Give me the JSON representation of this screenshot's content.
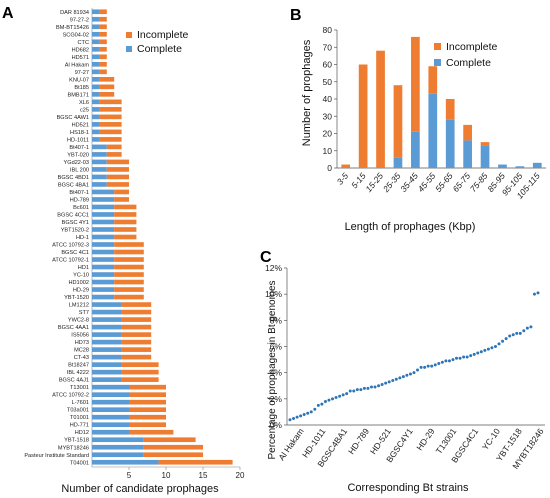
{
  "panels": {
    "a": "A",
    "b": "B",
    "c": "C"
  },
  "chart_data": [
    {
      "type": "bar",
      "orientation": "horizontal",
      "xlabel": "Number of candidate prophages",
      "xlim": [
        0,
        20
      ],
      "xticks": [
        5,
        10,
        15,
        20
      ],
      "legend": {
        "placement": "top-right",
        "entries": [
          "Incomplete",
          "Complete"
        ]
      },
      "colors": {
        "Incomplete": "#ee7d31",
        "Complete": "#5b9bd5"
      },
      "categories": [
        "DAR 81934",
        "97-27-2",
        "BM-BT15426",
        "SCG04-02",
        "CTC",
        "HD682",
        "HD571",
        "Al Hakam",
        "97-27",
        "KNU-07",
        "Bt185",
        "BMB171",
        "XL6",
        "c25",
        "BGSC 4AW1",
        "HD521",
        "HS18-1",
        "HD-1011",
        "Bt407-1",
        "YBT-020",
        "YGd22-03",
        "IBL 200",
        "BGSC 4BD1",
        "BGSC 4BA1",
        "Bt407-1",
        "HD-789",
        "Bc601",
        "BGSC 4CC1",
        "BGSC 4Y1",
        "YBT1520-2",
        "HD-1",
        "ATCC 10792-3",
        "BGSC 4C1",
        "ATCC 10792-1",
        "HD1",
        "YC-10",
        "HD1002",
        "HD-29",
        "YBT-1520",
        "LM1212",
        "ST7",
        "YWC2-8",
        "BGSC 4AA1",
        "IS5056",
        "HD73",
        "MC28",
        "CT-43",
        "Bt18247",
        "IBL 4222",
        "BGSC 4AJ1",
        "T13001",
        "ATCC 10792-2",
        "L-7601",
        "T03a001",
        "T01001",
        "HD-771",
        "HD12",
        "YBT-1518",
        "MYBT18246",
        "Pasteur Institute Standard",
        "T04001"
      ],
      "series": [
        {
          "name": "Incomplete",
          "values": [
            1,
            1,
            1,
            1,
            1,
            1,
            1,
            1,
            1,
            2,
            2,
            2,
            3,
            3,
            3,
            3,
            3,
            3,
            2,
            2,
            3,
            3,
            3,
            3,
            2,
            2,
            3,
            3,
            3,
            3,
            3,
            4,
            4,
            4,
            4,
            4,
            4,
            4,
            4,
            4,
            4,
            4,
            4,
            4,
            4,
            4,
            4,
            5,
            5,
            5,
            5,
            5,
            5,
            5,
            5,
            5,
            6,
            7,
            8,
            8,
            10
          ]
        },
        {
          "name": "Complete",
          "values": [
            1,
            1,
            1,
            1,
            1,
            1,
            1,
            1,
            1,
            1,
            1,
            1,
            1,
            1,
            1,
            1,
            1,
            1,
            2,
            2,
            2,
            2,
            2,
            2,
            3,
            3,
            3,
            3,
            3,
            3,
            3,
            3,
            3,
            3,
            3,
            3,
            3,
            3,
            3,
            4,
            4,
            4,
            4,
            4,
            4,
            4,
            4,
            4,
            4,
            4,
            5,
            5,
            5,
            5,
            5,
            5,
            5,
            7,
            7,
            7,
            9
          ]
        }
      ]
    },
    {
      "type": "bar",
      "stacked": true,
      "xlabel": "Length of prophages (Kbp)",
      "ylabel": "Number of prophages",
      "ylim": [
        0,
        80
      ],
      "yticks": [
        0,
        10,
        20,
        30,
        40,
        50,
        60,
        70,
        80
      ],
      "legend": {
        "placement": "top-right",
        "entries": [
          "Incomplete",
          "Complete"
        ]
      },
      "categories": [
        "3-5",
        "5-15",
        "15-25",
        "25-35",
        "35-45",
        "45-55",
        "55-65",
        "65-75",
        "75-85",
        "85-95",
        "95-105",
        "105-115"
      ],
      "series": [
        {
          "name": "Complete",
          "values": [
            0,
            0,
            0,
            6,
            21,
            43,
            28,
            16,
            13,
            2,
            1,
            3
          ]
        },
        {
          "name": "Incomplete",
          "values": [
            2,
            60,
            68,
            42,
            55,
            16,
            12,
            9,
            2,
            0,
            0,
            0
          ]
        }
      ]
    },
    {
      "type": "scatter",
      "xlabel": "Corresponding Bt strains",
      "ylabel": "Percentage of prophages in Bt genomes",
      "ylim": [
        0,
        12
      ],
      "yticks": [
        "0%",
        "2%",
        "4%",
        "6%",
        "8%",
        "10%",
        "12%"
      ],
      "x_tick_labels": [
        "Al Hakam",
        "HD-1011",
        "BGSC4BA1",
        "HD-789",
        "HD-521",
        "BGSC4Y1",
        "HD-29",
        "T13001",
        "BGSC4C1",
        "YC-10",
        "YBT-1518",
        "MYBT18246"
      ],
      "values": [
        0.4,
        0.5,
        0.6,
        0.7,
        0.8,
        0.9,
        1.0,
        1.2,
        1.5,
        1.6,
        1.8,
        1.9,
        2.0,
        2.1,
        2.2,
        2.3,
        2.4,
        2.6,
        2.6,
        2.7,
        2.7,
        2.8,
        2.8,
        2.9,
        2.9,
        3.0,
        3.1,
        3.2,
        3.3,
        3.4,
        3.5,
        3.6,
        3.7,
        3.8,
        3.9,
        4.0,
        4.2,
        4.4,
        4.4,
        4.5,
        4.5,
        4.6,
        4.7,
        4.8,
        4.9,
        4.9,
        5.0,
        5.1,
        5.1,
        5.2,
        5.2,
        5.3,
        5.4,
        5.5,
        5.6,
        5.7,
        5.8,
        5.9,
        6.0,
        6.2,
        6.4,
        6.6,
        6.8,
        6.9,
        7.0,
        7.0,
        7.2,
        7.4,
        7.5,
        10.0,
        10.1
      ]
    }
  ]
}
